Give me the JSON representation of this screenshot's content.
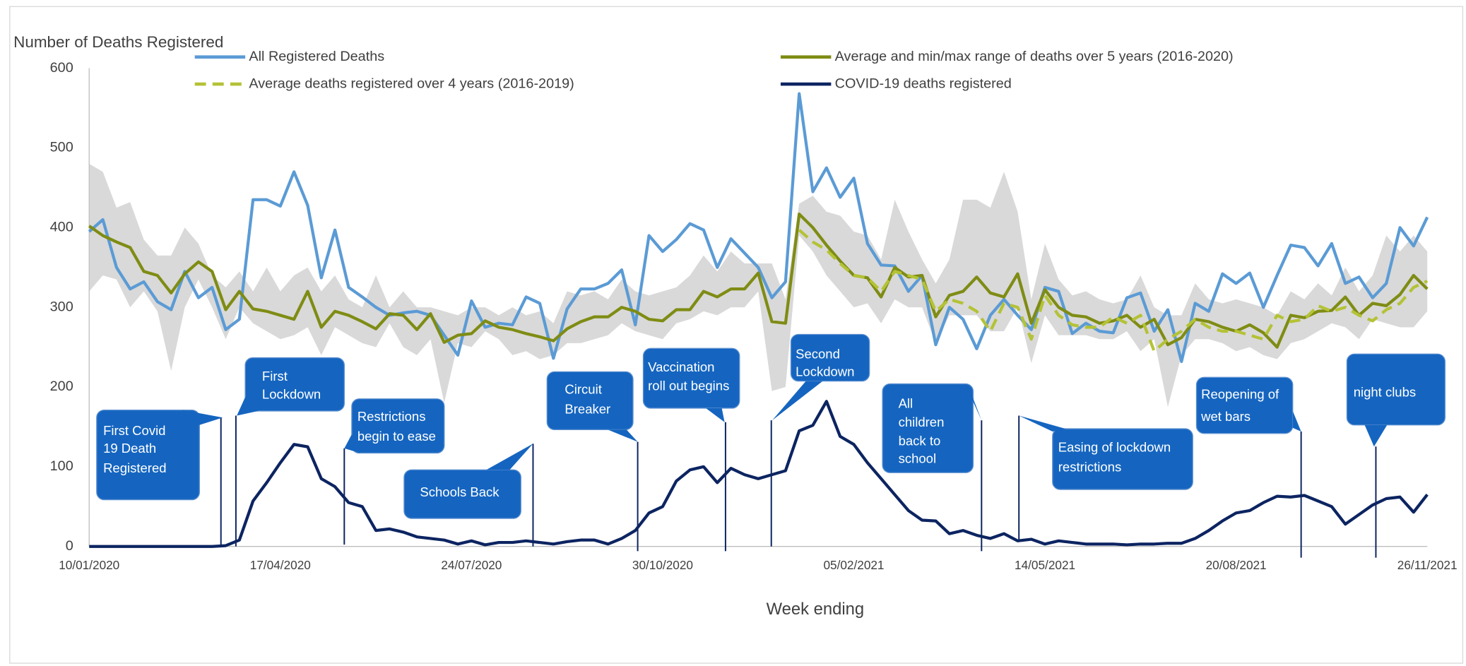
{
  "chart_data": {
    "type": "line",
    "y_axis_label": "Number of Deaths Registered",
    "x_axis_label": "Week ending",
    "categories": [
      "10/01/2020",
      null,
      null,
      null,
      null,
      null,
      null,
      null,
      null,
      null,
      null,
      null,
      null,
      null,
      "17/04/2020",
      null,
      null,
      null,
      null,
      null,
      null,
      null,
      null,
      null,
      null,
      null,
      null,
      null,
      "24/07/2020",
      null,
      null,
      null,
      null,
      null,
      null,
      null,
      null,
      null,
      null,
      null,
      null,
      null,
      "30/10/2020",
      null,
      null,
      null,
      null,
      null,
      null,
      null,
      null,
      null,
      null,
      null,
      null,
      null,
      "05/02/2021",
      null,
      null,
      null,
      null,
      null,
      null,
      null,
      null,
      null,
      null,
      null,
      null,
      null,
      "14/05/2021",
      null,
      null,
      null,
      null,
      null,
      null,
      null,
      null,
      null,
      null,
      null,
      null,
      null,
      "20/08/2021",
      null,
      null,
      null,
      null,
      null,
      null,
      null,
      null,
      null,
      null,
      null,
      null,
      null,
      "26/11/2021"
    ],
    "ylim": [
      0,
      600
    ],
    "yticks": [
      0,
      100,
      200,
      300,
      400,
      500,
      600
    ],
    "grid": false,
    "legend": "top",
    "series": [
      {
        "name": "All Registered Deaths",
        "color": "#5b9bd5",
        "values": [
          395,
          410,
          350,
          323,
          332,
          307,
          297,
          345,
          312,
          325,
          272,
          285,
          435,
          435,
          427,
          470,
          428,
          337,
          397,
          325,
          313,
          300,
          290,
          293,
          295,
          290,
          265,
          240,
          308,
          275,
          280,
          278,
          313,
          305,
          236,
          298,
          323,
          323,
          330,
          347,
          278,
          390,
          370,
          385,
          405,
          397,
          350,
          386,
          368,
          350,
          312,
          332,
          568,
          445,
          475,
          438,
          462,
          380,
          353,
          352,
          320,
          340,
          253,
          300,
          285,
          248,
          290,
          310,
          290,
          272,
          325,
          320,
          267,
          280,
          270,
          268,
          312,
          318,
          270,
          297,
          232,
          305,
          295,
          342,
          330,
          343,
          300,
          340,
          378,
          375,
          352,
          380,
          330,
          338,
          312,
          330,
          400,
          377,
          413
        ]
      },
      {
        "name": "Average and min/max range of deaths over 5 years (2016-2020)",
        "color": "#7f8c14",
        "range_color": "#d9d9d9",
        "values": [
          402,
          390,
          382,
          375,
          345,
          340,
          318,
          342,
          357,
          345,
          297,
          320,
          298,
          295,
          290,
          285,
          320,
          275,
          295,
          290,
          282,
          273,
          292,
          290,
          272,
          292,
          256,
          265,
          267,
          283,
          275,
          272,
          267,
          263,
          258,
          273,
          282,
          288,
          288,
          300,
          295,
          285,
          283,
          297,
          297,
          320,
          313,
          323,
          323,
          343,
          282,
          280,
          417,
          400,
          378,
          358,
          340,
          337,
          313,
          350,
          338,
          340,
          288,
          315,
          320,
          338,
          318,
          313,
          342,
          280,
          322,
          300,
          290,
          288,
          280,
          283,
          290,
          275,
          285,
          253,
          262,
          285,
          282,
          275,
          270,
          278,
          268,
          250,
          290,
          287,
          295,
          296,
          313,
          290,
          305,
          302,
          316,
          340,
          323
        ],
        "min": [
          320,
          340,
          335,
          300,
          320,
          295,
          220,
          300,
          335,
          300,
          260,
          300,
          280,
          270,
          260,
          265,
          275,
          240,
          275,
          265,
          255,
          250,
          280,
          250,
          240,
          260,
          180,
          255,
          250,
          270,
          260,
          240,
          245,
          235,
          240,
          255,
          255,
          260,
          265,
          280,
          270,
          265,
          260,
          280,
          285,
          295,
          290,
          300,
          300,
          320,
          195,
          200,
          390,
          370,
          340,
          320,
          300,
          305,
          280,
          310,
          300,
          300,
          255,
          290,
          290,
          290,
          270,
          270,
          300,
          230,
          290,
          265,
          265,
          265,
          260,
          260,
          270,
          245,
          260,
          175,
          240,
          260,
          260,
          255,
          245,
          250,
          240,
          235,
          255,
          260,
          270,
          280,
          275,
          260,
          285,
          280,
          275,
          275,
          295
        ],
        "max": [
          480,
          470,
          425,
          432,
          385,
          365,
          365,
          400,
          380,
          340,
          325,
          345,
          320,
          350,
          320,
          340,
          350,
          320,
          340,
          310,
          300,
          340,
          300,
          320,
          300,
          300,
          295,
          290,
          300,
          300,
          290,
          300,
          290,
          295,
          280,
          320,
          315,
          320,
          310,
          335,
          320,
          315,
          320,
          325,
          340,
          365,
          345,
          370,
          355,
          355,
          355,
          310,
          430,
          440,
          420,
          415,
          395,
          390,
          360,
          435,
          395,
          360,
          330,
          360,
          435,
          435,
          425,
          470,
          420,
          310,
          380,
          335,
          315,
          320,
          310,
          305,
          310,
          340,
          300,
          290,
          290,
          330,
          310,
          305,
          310,
          305,
          300,
          290,
          320,
          310,
          330,
          315,
          350,
          320,
          340,
          390,
          370,
          390,
          370
        ]
      },
      {
        "name": "Average deaths registered over 4 years (2016-2019)",
        "color": "#b4c236",
        "dashed": true,
        "values": [
          null,
          null,
          null,
          null,
          null,
          null,
          null,
          null,
          null,
          null,
          null,
          null,
          null,
          null,
          null,
          null,
          null,
          null,
          null,
          null,
          null,
          null,
          null,
          null,
          null,
          null,
          null,
          null,
          null,
          null,
          null,
          null,
          null,
          null,
          null,
          null,
          null,
          null,
          null,
          null,
          null,
          null,
          null,
          null,
          null,
          null,
          null,
          null,
          null,
          null,
          null,
          null,
          397,
          382,
          372,
          355,
          340,
          337,
          320,
          345,
          340,
          335,
          295,
          310,
          305,
          295,
          270,
          305,
          300,
          260,
          315,
          290,
          278,
          275,
          275,
          288,
          280,
          290,
          245,
          260,
          270,
          285,
          275,
          270,
          270,
          265,
          260,
          290,
          282,
          285,
          302,
          295,
          300,
          290,
          283,
          297,
          305,
          325,
          333
        ]
      },
      {
        "name": "COVID-19 deaths registered",
        "color": "#0c2461",
        "values": [
          0,
          0,
          0,
          0,
          0,
          0,
          0,
          0,
          0,
          0,
          1,
          8,
          57,
          80,
          105,
          128,
          125,
          85,
          75,
          55,
          50,
          20,
          22,
          18,
          12,
          10,
          8,
          3,
          7,
          2,
          5,
          5,
          7,
          5,
          3,
          6,
          8,
          8,
          3,
          10,
          20,
          42,
          50,
          82,
          96,
          100,
          80,
          98,
          90,
          85,
          90,
          95,
          145,
          152,
          182,
          138,
          128,
          105,
          85,
          65,
          45,
          33,
          32,
          16,
          20,
          14,
          10,
          16,
          7,
          9,
          3,
          7,
          5,
          3,
          3,
          3,
          2,
          3,
          3,
          4,
          4,
          10,
          20,
          32,
          42,
          45,
          55,
          63,
          62,
          64,
          57,
          50,
          28,
          40,
          52,
          60,
          62,
          43,
          65
        ]
      }
    ],
    "annotations": [
      {
        "text": [
          "First Covid",
          "19 Death",
          "Registered"
        ]
      },
      {
        "text": [
          "First",
          "Lockdown"
        ]
      },
      {
        "text": [
          "Restrictions",
          "begin to ease"
        ]
      },
      {
        "text": [
          "Schools Back"
        ]
      },
      {
        "text": [
          "Circuit",
          "Breaker"
        ]
      },
      {
        "text": [
          "Vaccination",
          "roll out  begins"
        ]
      },
      {
        "text": [
          "Second",
          "Lockdown"
        ]
      },
      {
        "text": [
          "All",
          "children",
          "back to",
          "school"
        ]
      },
      {
        "text": [
          "Easing of lockdown",
          "restrictions"
        ]
      },
      {
        "text": [
          "Reopening  of",
          "wet bars"
        ]
      },
      {
        "text": [
          "night clubs"
        ]
      }
    ]
  }
}
